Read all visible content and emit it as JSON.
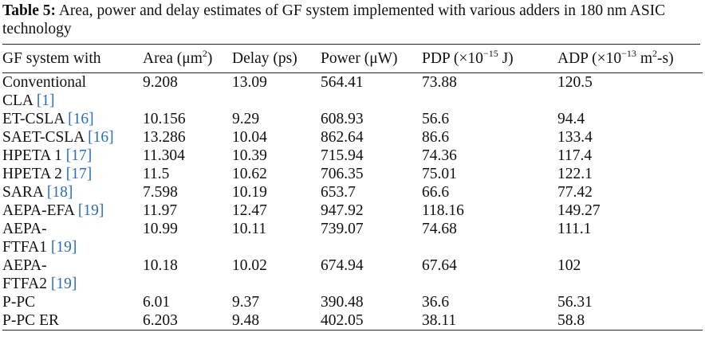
{
  "caption": {
    "label": "Table 5:",
    "text": "Area, power and delay estimates of GF system implemented with various adders in 180 nm ASIC technology"
  },
  "header": {
    "system": "GF system with",
    "area": "Area (μm",
    "area_sup": "2",
    "area_close": ")",
    "delay": "Delay (ps)",
    "power": "Power (μW)",
    "pdp": "PDP (×10",
    "pdp_sup": "−15",
    "pdp_close": " J)",
    "adp": "ADP (×10",
    "adp_sup": "−13",
    "adp_mid": " m",
    "adp_sup2": "2",
    "adp_close": "-s)"
  },
  "rows": [
    {
      "line1": "Conventional",
      "line2": "CLA",
      "ref": "[1]",
      "area": "9.208",
      "delay": "13.09",
      "power": "564.41",
      "pdp": "73.88",
      "adp": "120.5"
    },
    {
      "line1": "ET-CSLA",
      "line2": "",
      "ref": "[16]",
      "area": "10.156",
      "delay": "9.29",
      "power": "608.93",
      "pdp": "56.6",
      "adp": "94.4"
    },
    {
      "line1": "SAET-CSLA",
      "line2": "",
      "ref": "[16]",
      "area": "13.286",
      "delay": "10.04",
      "power": "862.64",
      "pdp": "86.6",
      "adp": "133.4"
    },
    {
      "line1": "HPETA 1",
      "line2": "",
      "ref": "[17]",
      "area": "11.304",
      "delay": "10.39",
      "power": "715.94",
      "pdp": "74.36",
      "adp": "117.4"
    },
    {
      "line1": "HPETA 2",
      "line2": "",
      "ref": "[17]",
      "area": "11.5",
      "delay": "10.62",
      "power": "706.35",
      "pdp": "75.01",
      "adp": "122.1"
    },
    {
      "line1": "SARA",
      "line2": "",
      "ref": "[18]",
      "area": "7.598",
      "delay": "10.19",
      "power": "653.7",
      "pdp": "66.6",
      "adp": "77.42"
    },
    {
      "line1": "AEPA-EFA",
      "line2": "",
      "ref": "[19]",
      "area": "11.97",
      "delay": "12.47",
      "power": "947.92",
      "pdp": "118.16",
      "adp": "149.27"
    },
    {
      "line1": "AEPA-",
      "line2": "FTFA1",
      "ref": "[19]",
      "area": "10.99",
      "delay": "10.11",
      "power": "739.07",
      "pdp": "74.68",
      "adp": "111.1"
    },
    {
      "line1": "AEPA-",
      "line2": "FTFA2",
      "ref": "[19]",
      "area": "10.18",
      "delay": "10.02",
      "power": "674.94",
      "pdp": "67.64",
      "adp": "102"
    },
    {
      "line1": "P-PC",
      "line2": "",
      "ref": "",
      "area": "6.01",
      "delay": "9.37",
      "power": "390.48",
      "pdp": "36.6",
      "adp": "56.31"
    },
    {
      "line1": "P-PC ER",
      "line2": "",
      "ref": "",
      "area": "6.203",
      "delay": "9.48",
      "power": "402.05",
      "pdp": "38.11",
      "adp": "58.8"
    }
  ]
}
